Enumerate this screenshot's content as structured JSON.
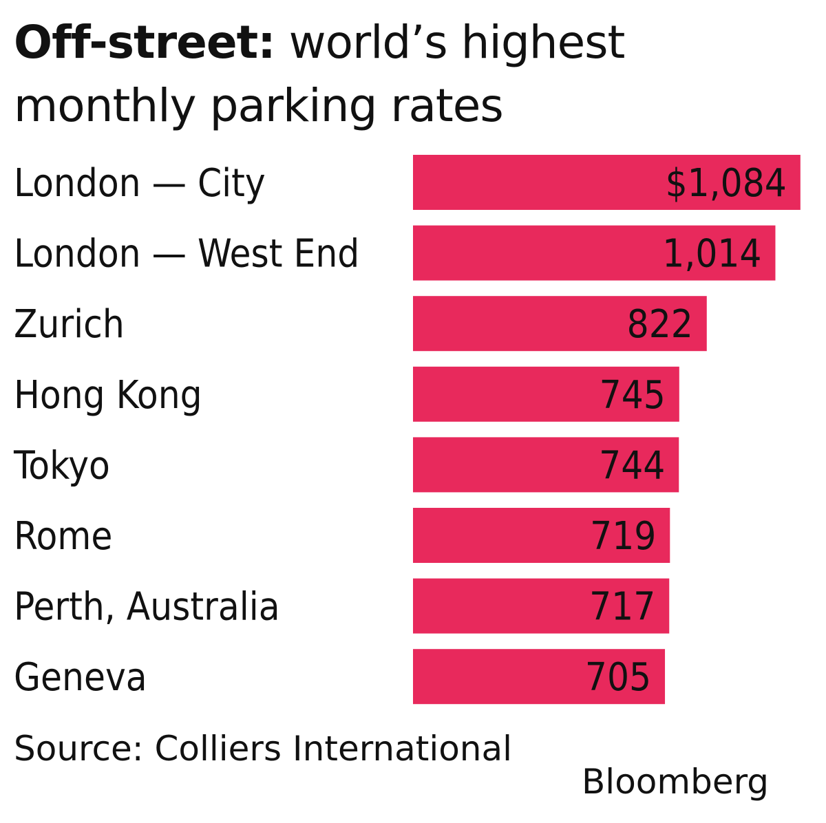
{
  "chart_data": {
    "type": "bar",
    "orientation": "horizontal",
    "title_bold": "Off-street:",
    "title_rest": " world’s highest monthly parking rates",
    "categories": [
      "London — City",
      "London — West End",
      "Zurich",
      "Hong Kong",
      "Tokyo",
      "Rome",
      "Perth, Australia",
      "Geneva"
    ],
    "values": [
      1084,
      1014,
      822,
      745,
      744,
      719,
      717,
      705
    ],
    "value_labels": [
      "$1,084",
      "1,014",
      "822",
      "745",
      "744",
      "719",
      "717",
      "705"
    ],
    "bar_color": "#e8295c",
    "axis_visible": false,
    "grid": false,
    "legend": "none"
  },
  "footer": {
    "source": "Source: Colliers International",
    "brand": "Bloomberg"
  }
}
